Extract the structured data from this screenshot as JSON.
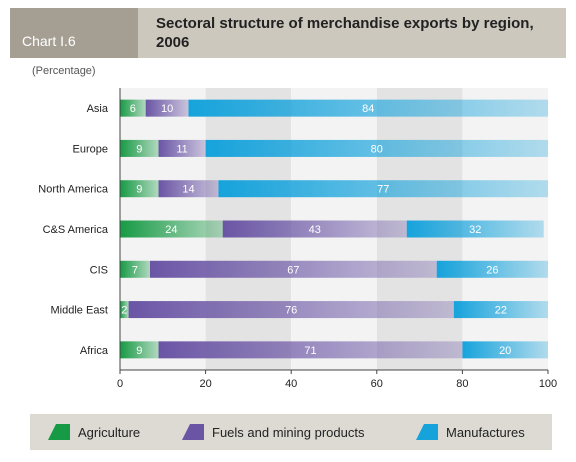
{
  "header": {
    "chart_number": "Chart I.6",
    "title": "Sectoral structure of merchandise exports by region, 2006"
  },
  "colors": {
    "agriculture": "#179a45",
    "fuels": "#6a55a5",
    "manufactures": "#16a3dc",
    "band_light": "#f3f3f3",
    "band_dark": "#e3e3e3"
  },
  "chart_data": {
    "type": "bar",
    "orientation": "horizontal",
    "stacked": true,
    "unit_label": "(Percentage)",
    "categories": [
      "Asia",
      "Europe",
      "North America",
      "C&S America",
      "CIS",
      "Middle East",
      "Africa"
    ],
    "series": [
      {
        "name": "Agriculture",
        "values": [
          6,
          9,
          9,
          24,
          7,
          2,
          9
        ]
      },
      {
        "name": "Fuels and mining products",
        "values": [
          10,
          11,
          14,
          43,
          67,
          76,
          71
        ]
      },
      {
        "name": "Manufactures",
        "values": [
          84,
          80,
          77,
          32,
          26,
          22,
          20
        ]
      }
    ],
    "xlim": [
      0,
      100
    ],
    "xticks": [
      0,
      20,
      40,
      60,
      80,
      100
    ],
    "legend": "bottom"
  }
}
